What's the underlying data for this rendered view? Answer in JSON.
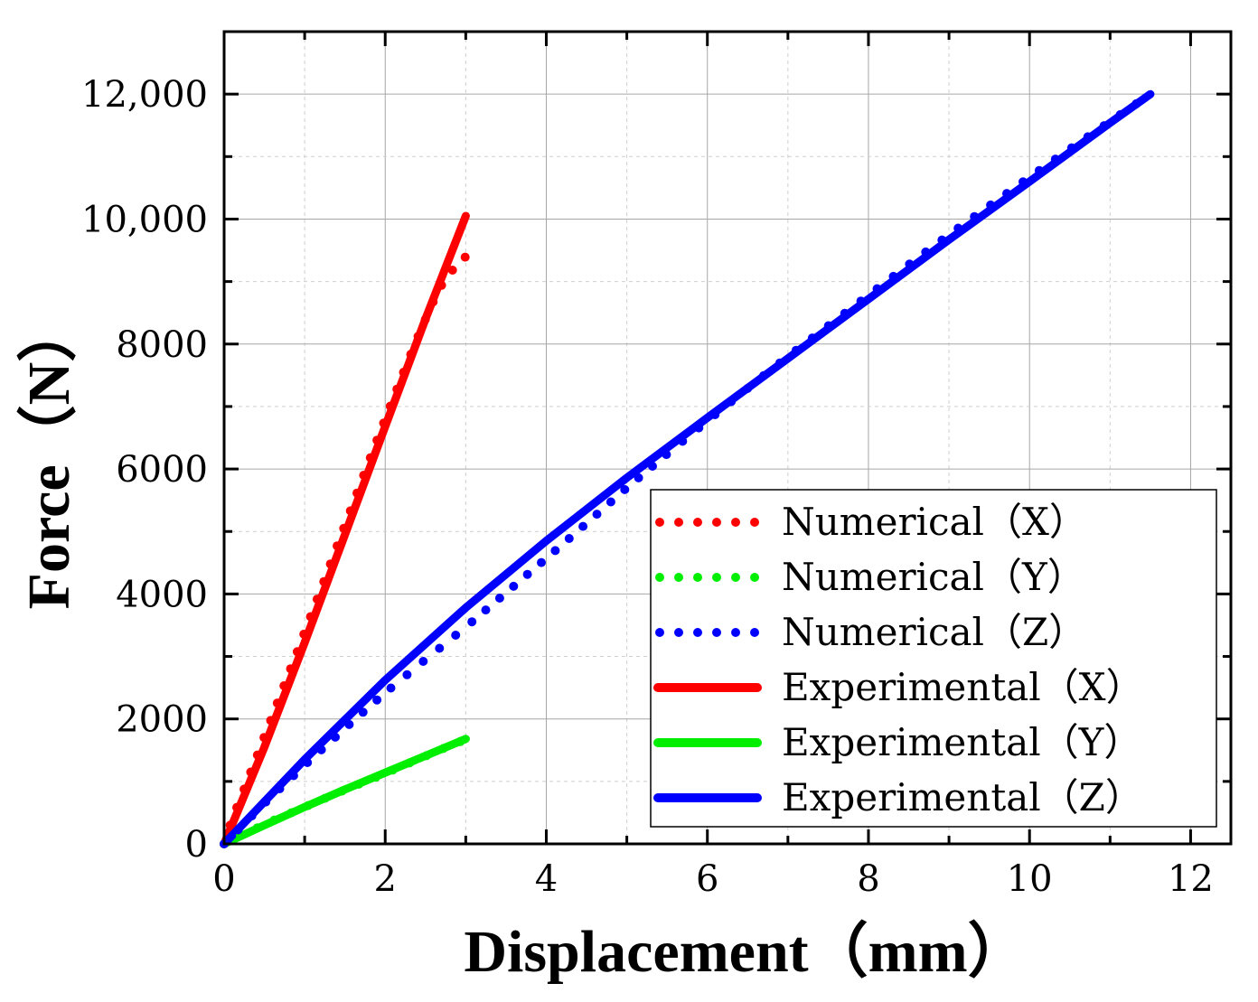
{
  "chart_data": {
    "type": "line",
    "title": "",
    "xlabel": "Displacement（mm）",
    "ylabel": "Force（N）",
    "xlim": [
      0,
      12.5
    ],
    "ylim": [
      0,
      13000
    ],
    "x_ticks": [
      0,
      2,
      4,
      6,
      8,
      10,
      12
    ],
    "x_tick_labels": [
      "0",
      "2",
      "4",
      "6",
      "8",
      "10",
      "12"
    ],
    "y_ticks": [
      0,
      2000,
      4000,
      6000,
      8000,
      10000,
      12000
    ],
    "y_tick_labels": [
      "0",
      "2000",
      "4000",
      "6000",
      "8000",
      "10,000",
      "12,000"
    ],
    "grid": true,
    "legend_position": "bottom-right",
    "series": [
      {
        "name": "Numerical (X)",
        "label": "Numerical（X）",
        "style": "dotted",
        "color": "#ff0000",
        "x": [
          0,
          0.1,
          0.2,
          0.3,
          0.4,
          0.5,
          0.6,
          0.7,
          0.8,
          0.9,
          1.0,
          1.1,
          1.2,
          1.3,
          1.4,
          1.5,
          1.6,
          1.7,
          1.8,
          1.9,
          2.0,
          2.1,
          2.2,
          2.3,
          2.4,
          2.5,
          2.6,
          2.7,
          2.8,
          2.9,
          3.0
        ],
        "y": [
          0,
          400,
          720,
          1050,
          1380,
          1720,
          2050,
          2390,
          2720,
          3050,
          3390,
          3730,
          4070,
          4410,
          4760,
          5100,
          5440,
          5790,
          6130,
          6470,
          6800,
          7130,
          7460,
          7780,
          8100,
          8400,
          8690,
          8940,
          9130,
          9280,
          9400
        ]
      },
      {
        "name": "Numerical (Y)",
        "label": "Numerical（Y）",
        "style": "dotted",
        "color": "#00ee00",
        "x": [
          0,
          0.2,
          0.4,
          0.6,
          0.8,
          1.0,
          1.2,
          1.4,
          1.6,
          1.8,
          2.0,
          2.2,
          2.4,
          2.6,
          2.8,
          3.0
        ],
        "y": [
          0,
          130,
          250,
          370,
          480,
          590,
          700,
          810,
          920,
          1020,
          1130,
          1240,
          1350,
          1460,
          1570,
          1670
        ]
      },
      {
        "name": "Numerical (Z)",
        "label": "Numerical（Z）",
        "style": "dotted",
        "color": "#0000ff",
        "x": [
          0,
          0.5,
          1.0,
          1.5,
          2.0,
          2.5,
          3.0,
          3.5,
          4.0,
          4.5,
          5.0,
          5.5,
          6.0,
          6.5,
          7.0,
          7.5,
          8.0,
          8.5,
          9.0,
          9.5,
          10.0,
          10.5,
          11.0,
          11.5
        ],
        "y": [
          0,
          650,
          1260,
          1850,
          2420,
          2950,
          3470,
          4020,
          4570,
          5130,
          5700,
          6240,
          6770,
          7290,
          7800,
          8290,
          8780,
          9270,
          9750,
          10210,
          10670,
          11120,
          11560,
          12000
        ]
      },
      {
        "name": "Experimental (X)",
        "label": "Experimental（X）",
        "style": "solid",
        "color": "#ff0000",
        "x": [
          0,
          0.5,
          1.0,
          1.5,
          2.0,
          2.5,
          3.0
        ],
        "y": [
          0,
          1550,
          3220,
          4950,
          6680,
          8400,
          10050
        ]
      },
      {
        "name": "Experimental (Y)",
        "label": "Experimental（Y）",
        "style": "solid",
        "color": "#00ee00",
        "x": [
          0,
          0.5,
          1.0,
          1.5,
          2.0,
          2.5,
          3.0
        ],
        "y": [
          0,
          300,
          590,
          870,
          1140,
          1410,
          1680
        ]
      },
      {
        "name": "Experimental (Z)",
        "label": "Experimental（Z）",
        "style": "solid",
        "color": "#0000ff",
        "x": [
          0,
          1.0,
          2.0,
          3.0,
          4.0,
          5.0,
          6.0,
          7.0,
          8.0,
          9.0,
          10.0,
          11.0,
          11.5
        ],
        "y": [
          0,
          1350,
          2620,
          3780,
          4850,
          5860,
          6820,
          7770,
          8720,
          9670,
          10600,
          11540,
          12000
        ]
      }
    ]
  }
}
